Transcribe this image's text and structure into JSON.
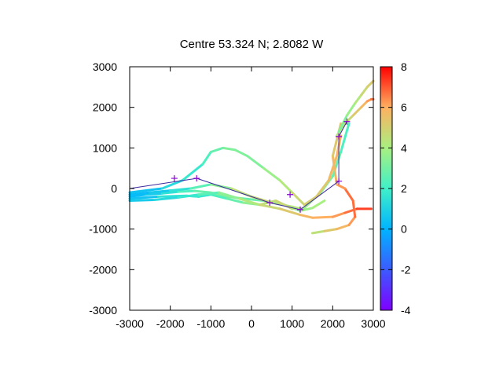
{
  "chart_data": {
    "type": "scatter",
    "title": "Centre 53.324 N; 2.8082  W",
    "xlabel": "",
    "ylabel": "",
    "xlim": [
      -3000,
      3000
    ],
    "ylim": [
      -3000,
      3000
    ],
    "x_ticks": [
      -3000,
      -2000,
      -1000,
      0,
      1000,
      2000,
      3000
    ],
    "y_ticks": [
      -3000,
      -2000,
      -1000,
      0,
      1000,
      2000,
      3000
    ],
    "x_tick_labels": [
      "-3000",
      "-2000",
      "-1000",
      "0",
      "1000",
      "2000",
      "3000"
    ],
    "y_tick_labels": [
      "-3000",
      "-2000",
      "-1000",
      "0",
      "1000",
      "2000",
      "3000"
    ],
    "grid": false,
    "colorbar": {
      "range": [
        -4,
        8
      ],
      "ticks": [
        -4,
        -2,
        0,
        2,
        4,
        6,
        8
      ],
      "tick_labels": [
        "-4",
        "-2",
        "0",
        "2",
        "4",
        "6",
        "8"
      ],
      "palette": [
        "#7f00ff",
        "#3b5bff",
        "#00b4ff",
        "#40f0c8",
        "#a8f080",
        "#ffb060",
        "#ff0000"
      ]
    },
    "tracks": [
      {
        "values_color": [
          0,
          0.5,
          1,
          2,
          2.5,
          3,
          3.5,
          3,
          2.5,
          3,
          3.5,
          4,
          4
        ],
        "x": [
          -3000,
          -2600,
          -2200,
          -1800,
          -1400,
          -1000,
          -600,
          -200,
          300,
          800,
          1200,
          1500,
          1800
        ],
        "y": [
          -200,
          -150,
          -120,
          -80,
          -60,
          -100,
          -200,
          -250,
          -300,
          -400,
          -550,
          -480,
          -300
        ]
      },
      {
        "values_color": [
          0,
          0.5,
          1,
          2,
          3,
          4,
          5,
          4.5,
          4,
          4.5
        ],
        "x": [
          -3000,
          -2500,
          -2000,
          -1500,
          -1000,
          -500,
          0,
          500,
          1000,
          1200
        ],
        "y": [
          -150,
          -100,
          -50,
          0,
          100,
          0,
          -200,
          -350,
          -450,
          -500
        ]
      },
      {
        "values_color": [
          0,
          1,
          2,
          1.5,
          2,
          2.5,
          3,
          4,
          5,
          4.5,
          4,
          3.5,
          3,
          2.5,
          2
        ],
        "x": [
          -3000,
          -2300,
          -1600,
          -1300,
          -1000,
          -600,
          -200,
          200,
          600,
          1000,
          1300,
          1700,
          2000,
          2200,
          2400
        ],
        "y": [
          -250,
          -200,
          -180,
          -200,
          -150,
          -250,
          -350,
          -400,
          -300,
          -500,
          -480,
          -100,
          300,
          900,
          1600
        ]
      },
      {
        "values_color": [
          0,
          1,
          1.5,
          2,
          2.5,
          3,
          3.5,
          3,
          3.5,
          4,
          4.5,
          5,
          5,
          5.5,
          6,
          6
        ],
        "x": [
          -3000,
          -2200,
          -1700,
          -1200,
          -1000,
          -700,
          -400,
          -100,
          300,
          700,
          1000,
          1300,
          1600,
          1900,
          2100,
          2200
        ],
        "y": [
          -100,
          0,
          200,
          600,
          900,
          1000,
          950,
          800,
          500,
          200,
          -100,
          -400,
          -200,
          200,
          800,
          1300
        ]
      },
      {
        "values_color": [
          0.5,
          1,
          1.5,
          2,
          3,
          4,
          4.5,
          5,
          5.5,
          6,
          6,
          6.5,
          7,
          7.5
        ],
        "x": [
          -3000,
          -2400,
          -1800,
          -1300,
          -800,
          -300,
          200,
          700,
          1200,
          1500,
          2000,
          2300,
          2600,
          2950
        ],
        "y": [
          -300,
          -280,
          -220,
          -150,
          -100,
          -250,
          -400,
          -500,
          -650,
          -720,
          -700,
          -600,
          -500,
          -500
        ]
      },
      {
        "values_color": [
          4,
          5,
          5.5,
          6,
          6.5,
          7,
          6.5,
          6,
          5.5,
          5
        ],
        "x": [
          1500,
          1800,
          2100,
          2400,
          2550,
          2500,
          2300,
          2100,
          2000,
          2200
        ],
        "y": [
          -1100,
          -1050,
          -1000,
          -900,
          -700,
          -300,
          0,
          100,
          800,
          1600
        ]
      },
      {
        "values_color": [
          4,
          4.5,
          5,
          5.5,
          6,
          6.5,
          7
        ],
        "x": [
          2100,
          2300,
          2500,
          2700,
          2850,
          2950,
          3000
        ],
        "y": [
          1300,
          1600,
          1800,
          2000,
          2150,
          2200,
          2200
        ]
      },
      {
        "values_color": [
          3,
          3.5,
          4,
          4.5,
          5,
          5,
          5.5
        ],
        "x": [
          2150,
          2350,
          2550,
          2700,
          2850,
          2950,
          3000
        ],
        "y": [
          1400,
          1800,
          2100,
          2300,
          2500,
          2600,
          2650
        ]
      }
    ],
    "waypoints": {
      "x": [
        -1900,
        -1350,
        450,
        950,
        1200,
        2150,
        2150,
        2350
      ],
      "y": [
        250,
        250,
        -350,
        -150,
        -520,
        180,
        1280,
        1650
      ]
    },
    "route": {
      "x": [
        -3000,
        -1350,
        450,
        1200,
        2150,
        2150,
        2350
      ],
      "y": [
        0,
        250,
        -350,
        -520,
        180,
        1280,
        1650
      ]
    }
  }
}
